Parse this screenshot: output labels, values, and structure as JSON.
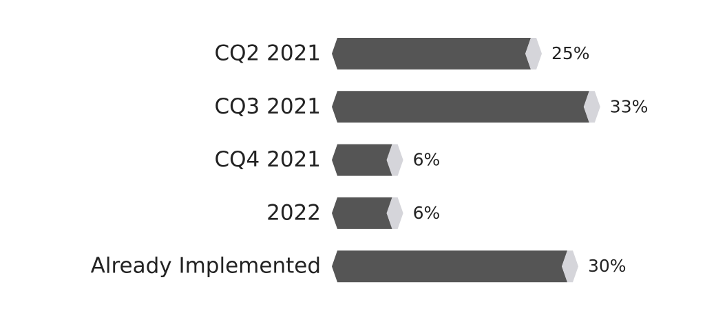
{
  "chart_data": {
    "type": "bar",
    "categories": [
      "CQ2 2021",
      "CQ3 2021",
      "CQ4 2021",
      "2022",
      "Already Implemented"
    ],
    "values": [
      25,
      33,
      6,
      6,
      30
    ],
    "value_labels": [
      "25%",
      "33%",
      "6%",
      "6%",
      "30%"
    ],
    "color": "#555555",
    "tip_color": "#d5d5da"
  }
}
